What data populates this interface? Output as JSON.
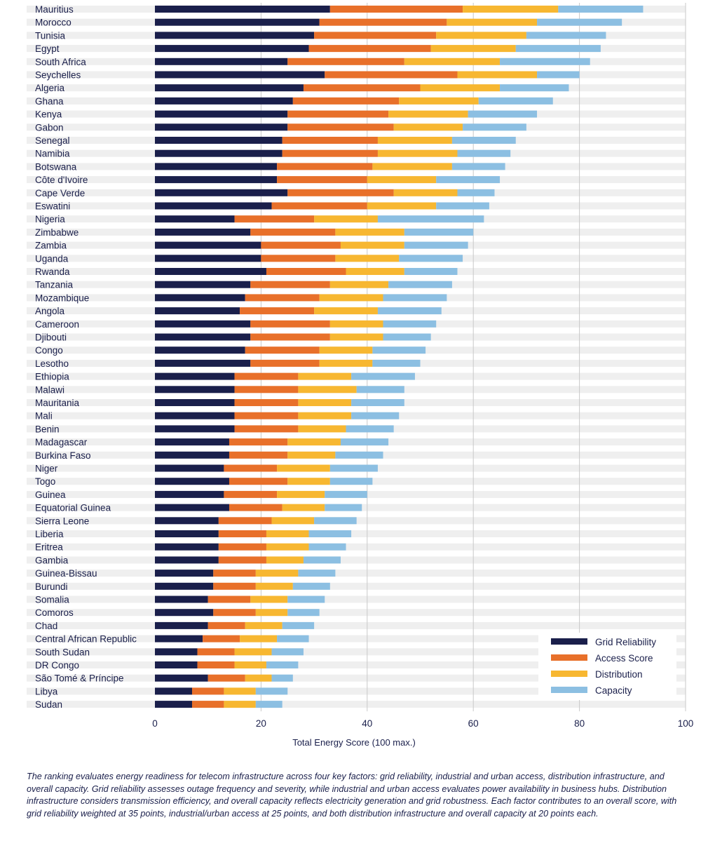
{
  "chart_data": {
    "type": "bar",
    "orientation": "horizontal",
    "stacked": true,
    "xlabel": "Total Energy Score (100 max.)",
    "xlim": [
      0,
      100
    ],
    "xticks": [
      0,
      20,
      40,
      60,
      80,
      100
    ],
    "grid": true,
    "legend_position": "bottom-right",
    "colors": {
      "Grid Reliability": "#1a1f4b",
      "Access Score": "#e8702a",
      "Distribution": "#f7b731",
      "Capacity": "#8cbfe2"
    },
    "categories": [
      "Mauritius",
      "Morocco",
      "Tunisia",
      "Egypt",
      "South Africa",
      "Seychelles",
      "Algeria",
      "Ghana",
      "Kenya",
      "Gabon",
      "Senegal",
      "Namibia",
      "Botswana",
      "Côte d'Ivoire",
      "Cape Verde",
      "Eswatini",
      "Nigeria",
      "Zimbabwe",
      "Zambia",
      "Uganda",
      "Rwanda",
      "Tanzania",
      "Mozambique",
      "Angola",
      "Cameroon",
      "Djibouti",
      "Congo",
      "Lesotho",
      "Ethiopia",
      "Malawi",
      "Mauritania",
      "Mali",
      "Benin",
      "Madagascar",
      "Burkina Faso",
      "Niger",
      "Togo",
      "Guinea",
      "Equatorial Guinea",
      "Sierra Leone",
      "Liberia",
      "Eritrea",
      "Gambia",
      "Guinea-Bissau",
      "Burundi",
      "Somalia",
      "Comoros",
      "Chad",
      "Central African Republic",
      "South Sudan",
      "DR Congo",
      "São Tomé & Príncipe",
      "Libya",
      "Sudan"
    ],
    "series": [
      {
        "name": "Grid Reliability",
        "values": [
          33,
          31,
          30,
          29,
          25,
          32,
          28,
          26,
          25,
          25,
          24,
          24,
          23,
          23,
          25,
          22,
          15,
          18,
          20,
          20,
          21,
          18,
          17,
          16,
          18,
          18,
          17,
          18,
          15,
          15,
          15,
          15,
          15,
          14,
          14,
          13,
          14,
          13,
          14,
          12,
          12,
          12,
          12,
          11,
          11,
          10,
          11,
          10,
          9,
          8,
          8,
          10,
          7,
          7
        ]
      },
      {
        "name": "Access Score",
        "values": [
          25,
          24,
          23,
          23,
          22,
          25,
          22,
          20,
          19,
          20,
          18,
          18,
          18,
          17,
          20,
          18,
          15,
          16,
          15,
          14,
          15,
          15,
          14,
          14,
          15,
          15,
          14,
          13,
          12,
          12,
          12,
          12,
          12,
          11,
          11,
          10,
          11,
          10,
          10,
          10,
          9,
          9,
          9,
          8,
          8,
          8,
          8,
          7,
          7,
          7,
          7,
          7,
          6,
          6
        ]
      },
      {
        "name": "Distribution",
        "values": [
          18,
          17,
          17,
          16,
          18,
          15,
          15,
          15,
          15,
          13,
          14,
          15,
          15,
          13,
          12,
          13,
          12,
          13,
          12,
          12,
          11,
          11,
          12,
          12,
          10,
          10,
          10,
          10,
          10,
          11,
          10,
          10,
          9,
          10,
          9,
          10,
          8,
          9,
          8,
          8,
          8,
          8,
          7,
          8,
          7,
          7,
          6,
          7,
          7,
          7,
          6,
          5,
          6,
          6
        ]
      },
      {
        "name": "Capacity",
        "values": [
          16,
          16,
          15,
          16,
          17,
          8,
          13,
          14,
          13,
          12,
          12,
          10,
          10,
          12,
          7,
          10,
          20,
          13,
          12,
          12,
          10,
          12,
          12,
          12,
          10,
          9,
          10,
          9,
          12,
          9,
          10,
          9,
          9,
          9,
          9,
          9,
          8,
          8,
          7,
          8,
          8,
          7,
          7,
          7,
          7,
          7,
          6,
          6,
          6,
          6,
          6,
          4,
          6,
          5
        ]
      }
    ]
  },
  "footnote": "The ranking evaluates energy readiness for telecom infrastructure across four key factors: grid reliability, industrial and urban access, distribution infrastructure, and overall capacity. Grid reliability assesses outage frequency and severity, while industrial and urban access evaluates power availability in business hubs. Distribution infrastructure considers transmission efficiency, and overall capacity reflects electricity generation and grid robustness. Each factor contributes to an overall score, with grid reliability weighted at 35 points, industrial/urban access at 25 points, and both distribution infrastructure and overall capacity at 20 points each."
}
